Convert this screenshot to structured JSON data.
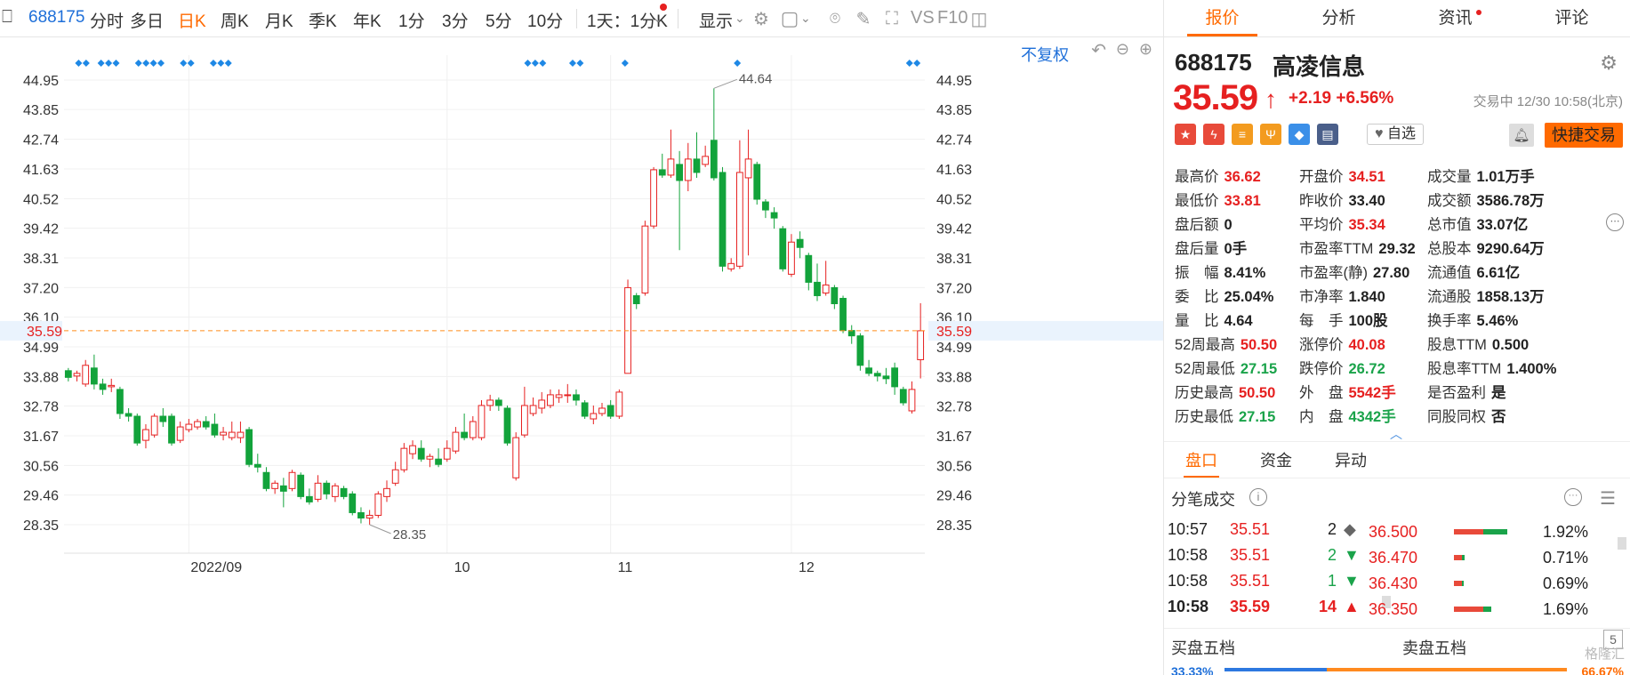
{
  "toolbar": {
    "code": "688175",
    "items": [
      "分时",
      "多日",
      "日K",
      "周K",
      "月K",
      "季K",
      "年K",
      "1分",
      "3分",
      "5分",
      "10分"
    ],
    "active": "日K",
    "interval_select": "1天：1分K",
    "display": "显示",
    "vs_label": "VS",
    "f10_label": "F10"
  },
  "chart": {
    "fq_label": "不复权",
    "high_annotation": "44.64",
    "low_annotation": "28.35",
    "current_price_tag": "35.59",
    "month_labels": [
      "2022/09",
      "10",
      "11",
      "12"
    ]
  },
  "chart_data": {
    "type": "candlestick",
    "y_ticks": [
      44.95,
      43.85,
      42.74,
      41.63,
      40.52,
      39.42,
      38.31,
      37.2,
      36.1,
      34.99,
      33.88,
      32.78,
      31.67,
      30.56,
      29.46,
      28.35
    ],
    "ylim": [
      28.35,
      44.95
    ],
    "current_price": 35.59,
    "period_high": 44.64,
    "period_low": 28.35,
    "x_labels": [
      "2022/09",
      "10",
      "11",
      "12"
    ],
    "candles": [
      {
        "o": 34.1,
        "c": 33.85,
        "h": 34.2,
        "l": 33.7
      },
      {
        "o": 33.9,
        "c": 34.0,
        "h": 34.1,
        "l": 33.7
      },
      {
        "o": 33.6,
        "c": 34.3,
        "h": 34.5,
        "l": 33.5
      },
      {
        "o": 34.2,
        "c": 33.6,
        "h": 34.7,
        "l": 33.4
      },
      {
        "o": 33.6,
        "c": 33.4,
        "h": 33.8,
        "l": 33.2
      },
      {
        "o": 33.5,
        "c": 33.55,
        "h": 33.8,
        "l": 33.3
      },
      {
        "o": 33.4,
        "c": 32.5,
        "h": 33.5,
        "l": 32.3
      },
      {
        "o": 32.5,
        "c": 32.4,
        "h": 32.7,
        "l": 32.2
      },
      {
        "o": 32.4,
        "c": 31.4,
        "h": 32.5,
        "l": 31.3
      },
      {
        "o": 31.5,
        "c": 31.9,
        "h": 32.1,
        "l": 31.2
      },
      {
        "o": 31.7,
        "c": 32.4,
        "h": 32.5,
        "l": 31.6
      },
      {
        "o": 32.4,
        "c": 32.2,
        "h": 32.7,
        "l": 32.0
      },
      {
        "o": 32.4,
        "c": 31.4,
        "h": 32.5,
        "l": 31.3
      },
      {
        "o": 31.5,
        "c": 32.0,
        "h": 32.2,
        "l": 31.4
      },
      {
        "o": 31.9,
        "c": 32.1,
        "h": 32.3,
        "l": 31.8
      },
      {
        "o": 32.0,
        "c": 32.2,
        "h": 32.3,
        "l": 31.9
      },
      {
        "o": 32.2,
        "c": 32.0,
        "h": 32.4,
        "l": 31.9
      },
      {
        "o": 32.1,
        "c": 31.7,
        "h": 32.5,
        "l": 31.6
      },
      {
        "o": 31.7,
        "c": 31.8,
        "h": 32.0,
        "l": 31.5
      },
      {
        "o": 31.6,
        "c": 31.8,
        "h": 32.2,
        "l": 31.5
      },
      {
        "o": 31.6,
        "c": 31.8,
        "h": 32.2,
        "l": 31.4
      },
      {
        "o": 31.9,
        "c": 30.6,
        "h": 32.0,
        "l": 30.5
      },
      {
        "o": 30.6,
        "c": 30.5,
        "h": 31.0,
        "l": 30.3
      },
      {
        "o": 30.3,
        "c": 29.7,
        "h": 30.5,
        "l": 29.6
      },
      {
        "o": 29.7,
        "c": 29.9,
        "h": 30.0,
        "l": 29.5
      },
      {
        "o": 29.8,
        "c": 29.6,
        "h": 30.1,
        "l": 29.0
      },
      {
        "o": 29.7,
        "c": 30.3,
        "h": 30.4,
        "l": 29.6
      },
      {
        "o": 30.2,
        "c": 29.4,
        "h": 30.3,
        "l": 29.3
      },
      {
        "o": 29.4,
        "c": 29.2,
        "h": 29.7,
        "l": 29.1
      },
      {
        "o": 29.3,
        "c": 29.9,
        "h": 30.2,
        "l": 29.2
      },
      {
        "o": 29.9,
        "c": 29.5,
        "h": 30.0,
        "l": 29.3
      },
      {
        "o": 29.4,
        "c": 29.8,
        "h": 29.9,
        "l": 29.2
      },
      {
        "o": 29.7,
        "c": 29.4,
        "h": 29.8,
        "l": 29.3
      },
      {
        "o": 29.5,
        "c": 28.8,
        "h": 29.6,
        "l": 28.7
      },
      {
        "o": 28.8,
        "c": 28.6,
        "h": 29.0,
        "l": 28.4
      },
      {
        "o": 28.6,
        "c": 28.7,
        "h": 28.9,
        "l": 28.35
      },
      {
        "o": 28.7,
        "c": 29.5,
        "h": 29.6,
        "l": 28.6
      },
      {
        "o": 29.4,
        "c": 29.7,
        "h": 30.0,
        "l": 29.2
      },
      {
        "o": 29.9,
        "c": 30.4,
        "h": 30.7,
        "l": 29.8
      },
      {
        "o": 30.4,
        "c": 31.2,
        "h": 31.4,
        "l": 30.3
      },
      {
        "o": 31.0,
        "c": 31.3,
        "h": 31.5,
        "l": 30.8
      },
      {
        "o": 31.2,
        "c": 30.8,
        "h": 31.5,
        "l": 30.7
      },
      {
        "o": 30.8,
        "c": 30.9,
        "h": 31.0,
        "l": 30.5
      },
      {
        "o": 30.8,
        "c": 30.6,
        "h": 31.2,
        "l": 30.5
      },
      {
        "o": 30.8,
        "c": 31.2,
        "h": 31.5,
        "l": 30.7
      },
      {
        "o": 31.1,
        "c": 31.8,
        "h": 32.0,
        "l": 31.0
      },
      {
        "o": 31.8,
        "c": 31.6,
        "h": 32.5,
        "l": 31.5
      },
      {
        "o": 31.6,
        "c": 32.2,
        "h": 32.4,
        "l": 31.5
      },
      {
        "o": 31.6,
        "c": 32.8,
        "h": 33.0,
        "l": 31.5
      },
      {
        "o": 32.8,
        "c": 33.0,
        "h": 33.2,
        "l": 32.6
      },
      {
        "o": 33.0,
        "c": 32.8,
        "h": 33.1,
        "l": 32.6
      },
      {
        "o": 32.7,
        "c": 31.4,
        "h": 32.8,
        "l": 31.3
      },
      {
        "o": 30.1,
        "c": 31.6,
        "h": 31.8,
        "l": 30.0
      },
      {
        "o": 31.7,
        "c": 32.8,
        "h": 33.5,
        "l": 31.6
      },
      {
        "o": 32.5,
        "c": 32.8,
        "h": 33.1,
        "l": 32.4
      },
      {
        "o": 32.7,
        "c": 33.0,
        "h": 33.3,
        "l": 32.5
      },
      {
        "o": 32.8,
        "c": 33.2,
        "h": 33.4,
        "l": 32.7
      },
      {
        "o": 33.1,
        "c": 33.2,
        "h": 33.4,
        "l": 32.9
      },
      {
        "o": 33.2,
        "c": 33.2,
        "h": 33.6,
        "l": 32.9
      },
      {
        "o": 33.2,
        "c": 33.0,
        "h": 33.4,
        "l": 32.8
      },
      {
        "o": 32.9,
        "c": 32.4,
        "h": 33.0,
        "l": 32.3
      },
      {
        "o": 32.3,
        "c": 32.5,
        "h": 32.8,
        "l": 32.1
      },
      {
        "o": 32.5,
        "c": 32.7,
        "h": 32.9,
        "l": 32.4
      },
      {
        "o": 32.8,
        "c": 32.4,
        "h": 33.0,
        "l": 32.3
      },
      {
        "o": 32.4,
        "c": 33.3,
        "h": 33.4,
        "l": 32.3
      },
      {
        "o": 34.0,
        "c": 37.2,
        "h": 37.5,
        "l": 34.0
      },
      {
        "o": 36.9,
        "c": 36.6,
        "h": 37.0,
        "l": 36.4
      },
      {
        "o": 37.0,
        "c": 39.5,
        "h": 39.7,
        "l": 36.9
      },
      {
        "o": 39.5,
        "c": 41.6,
        "h": 41.7,
        "l": 39.4
      },
      {
        "o": 41.6,
        "c": 41.4,
        "h": 42.2,
        "l": 41.3
      },
      {
        "o": 41.4,
        "c": 42.0,
        "h": 43.1,
        "l": 41.3
      },
      {
        "o": 41.8,
        "c": 41.2,
        "h": 42.3,
        "l": 38.6
      },
      {
        "o": 41.2,
        "c": 42.0,
        "h": 42.6,
        "l": 40.8
      },
      {
        "o": 42.0,
        "c": 41.5,
        "h": 43.0,
        "l": 41.3
      },
      {
        "o": 41.8,
        "c": 42.1,
        "h": 42.5,
        "l": 41.7
      },
      {
        "o": 42.7,
        "c": 41.3,
        "h": 44.64,
        "l": 41.2
      },
      {
        "o": 41.5,
        "c": 38.0,
        "h": 41.7,
        "l": 37.8
      },
      {
        "o": 37.9,
        "c": 38.1,
        "h": 38.3,
        "l": 37.8
      },
      {
        "o": 38.0,
        "c": 41.5,
        "h": 42.7,
        "l": 37.9
      },
      {
        "o": 41.3,
        "c": 42.0,
        "h": 43.1,
        "l": 38.4
      },
      {
        "o": 41.8,
        "c": 40.5,
        "h": 41.9,
        "l": 40.3
      },
      {
        "o": 40.4,
        "c": 40.1,
        "h": 40.5,
        "l": 39.8
      },
      {
        "o": 40.0,
        "c": 39.8,
        "h": 40.2,
        "l": 39.4
      },
      {
        "o": 39.4,
        "c": 37.9,
        "h": 39.5,
        "l": 37.8
      },
      {
        "o": 37.7,
        "c": 38.9,
        "h": 39.2,
        "l": 37.6
      },
      {
        "o": 39.0,
        "c": 38.7,
        "h": 39.3,
        "l": 38.3
      },
      {
        "o": 38.4,
        "c": 37.4,
        "h": 38.5,
        "l": 37.1
      },
      {
        "o": 37.4,
        "c": 36.9,
        "h": 38.1,
        "l": 36.7
      },
      {
        "o": 37.0,
        "c": 37.3,
        "h": 38.2,
        "l": 36.9
      },
      {
        "o": 37.2,
        "c": 36.6,
        "h": 37.3,
        "l": 36.4
      },
      {
        "o": 36.8,
        "c": 35.6,
        "h": 36.9,
        "l": 35.5
      },
      {
        "o": 35.6,
        "c": 35.4,
        "h": 35.8,
        "l": 35.1
      },
      {
        "o": 35.4,
        "c": 34.3,
        "h": 35.5,
        "l": 34.1
      },
      {
        "o": 34.2,
        "c": 34.0,
        "h": 34.5,
        "l": 33.9
      },
      {
        "o": 34.0,
        "c": 33.9,
        "h": 34.1,
        "l": 33.7
      },
      {
        "o": 33.9,
        "c": 33.8,
        "h": 34.2,
        "l": 33.6
      },
      {
        "o": 34.2,
        "c": 33.5,
        "h": 34.4,
        "l": 33.2
      },
      {
        "o": 33.4,
        "c": 32.9,
        "h": 33.5,
        "l": 32.8
      },
      {
        "o": 32.6,
        "c": 33.4,
        "h": 33.7,
        "l": 32.5
      },
      {
        "o": 34.51,
        "c": 35.59,
        "h": 36.62,
        "l": 33.81
      }
    ],
    "signal_markers": [
      1,
      2,
      4,
      5,
      6,
      9,
      10,
      11,
      12,
      15,
      16,
      19,
      20,
      21,
      61,
      62,
      63,
      67,
      68,
      74,
      89,
      112,
      113
    ]
  },
  "panel": {
    "tabs": [
      "报价",
      "分析",
      "资讯",
      "评论"
    ],
    "active_tab": "报价",
    "code": "688175",
    "name": "高凌信息",
    "price": "35.59",
    "change": "+2.19",
    "change_pct": "+6.56%",
    "status": "交易中 12/30 10:58(北京)",
    "zixuan": "自选",
    "quick_trade": "快捷交易",
    "badge_colors": [
      "#e84a3a",
      "#e84a3a",
      "#f39b1f",
      "#f39b1f",
      "#3b8fe8",
      "#4a5f8a"
    ],
    "quotes": [
      [
        {
          "l": "最高价",
          "v": "36.62",
          "c": "red"
        },
        {
          "l": "开盘价",
          "v": "34.51",
          "c": "red"
        },
        {
          "l": "成交量",
          "v": "1.01万手",
          "c": "black"
        }
      ],
      [
        {
          "l": "最低价",
          "v": "33.81",
          "c": "red"
        },
        {
          "l": "昨收价",
          "v": "33.40",
          "c": "black"
        },
        {
          "l": "成交额",
          "v": "3586.78万",
          "c": "black"
        }
      ],
      [
        {
          "l": "盘后额",
          "v": "0",
          "c": "black"
        },
        {
          "l": "平均价",
          "v": "35.34",
          "c": "red"
        },
        {
          "l": "总市值",
          "v": "33.07亿",
          "c": "black"
        }
      ],
      [
        {
          "l": "盘后量",
          "v": "0手",
          "c": "black"
        },
        {
          "l": "市盈率TTM",
          "v": "29.32",
          "c": "black"
        },
        {
          "l": "总股本",
          "v": "9290.64万",
          "c": "black"
        }
      ],
      [
        {
          "l": "振　幅",
          "v": "8.41%",
          "c": "black"
        },
        {
          "l": "市盈率(静)",
          "v": "27.80",
          "c": "black"
        },
        {
          "l": "流通值",
          "v": "6.61亿",
          "c": "black"
        }
      ],
      [
        {
          "l": "委　比",
          "v": "25.04%",
          "c": "black"
        },
        {
          "l": "市净率",
          "v": "1.840",
          "c": "black"
        },
        {
          "l": "流通股",
          "v": "1858.13万",
          "c": "black"
        }
      ],
      [
        {
          "l": "量　比",
          "v": "4.64",
          "c": "black"
        },
        {
          "l": "每　手",
          "v": "100股",
          "c": "black"
        },
        {
          "l": "换手率",
          "v": "5.46%",
          "c": "black"
        }
      ],
      [
        {
          "l": "52周最高",
          "v": "50.50",
          "c": "red"
        },
        {
          "l": "涨停价",
          "v": "40.08",
          "c": "red"
        },
        {
          "l": "股息TTM",
          "v": "0.500",
          "c": "black"
        }
      ],
      [
        {
          "l": "52周最低",
          "v": "27.15",
          "c": "green"
        },
        {
          "l": "跌停价",
          "v": "26.72",
          "c": "green"
        },
        {
          "l": "股息率TTM",
          "v": "1.400%",
          "c": "black"
        }
      ],
      [
        {
          "l": "历史最高",
          "v": "50.50",
          "c": "red"
        },
        {
          "l": "外　盘",
          "v": "5542手",
          "c": "red"
        },
        {
          "l": "是否盈利",
          "v": "是",
          "c": "black"
        }
      ],
      [
        {
          "l": "历史最低",
          "v": "27.15",
          "c": "green"
        },
        {
          "l": "内　盘",
          "v": "4342手",
          "c": "green"
        },
        {
          "l": "同股同权",
          "v": "否",
          "c": "black"
        }
      ]
    ],
    "sub_tabs": [
      "盘口",
      "资金",
      "异动"
    ],
    "tick_title": "分笔成交",
    "ticks": [
      {
        "t": "10:57",
        "p": "35.51",
        "q": "2",
        "d": "◆",
        "dc": "#666"
      },
      {
        "t": "10:58",
        "p": "35.51",
        "q": "2",
        "d": "▼",
        "dc": "#1aa34a"
      },
      {
        "t": "10:58",
        "p": "35.51",
        "q": "1",
        "d": "▼",
        "dc": "#1aa34a"
      },
      {
        "t": "10:58",
        "p": "35.59",
        "q": "14",
        "d": "▲",
        "dc": "#e62020"
      }
    ],
    "dist": [
      {
        "p": "36.500",
        "pct": "1.92%",
        "red": 0.55,
        "green": 0.45
      },
      {
        "p": "36.470",
        "pct": "0.71%",
        "red": 0.15,
        "green": 0.05
      },
      {
        "p": "36.430",
        "pct": "0.69%",
        "red": 0.15,
        "green": 0.04
      },
      {
        "p": "36.350",
        "pct": "1.69%",
        "red": 0.55,
        "green": 0.15
      }
    ],
    "buy_five": "买盘五档",
    "sell_five": "卖盘五档",
    "five_num": "5",
    "buy_ratio": "33.33%",
    "sell_ratio": "66.67%",
    "watermark": "格隆汇"
  }
}
